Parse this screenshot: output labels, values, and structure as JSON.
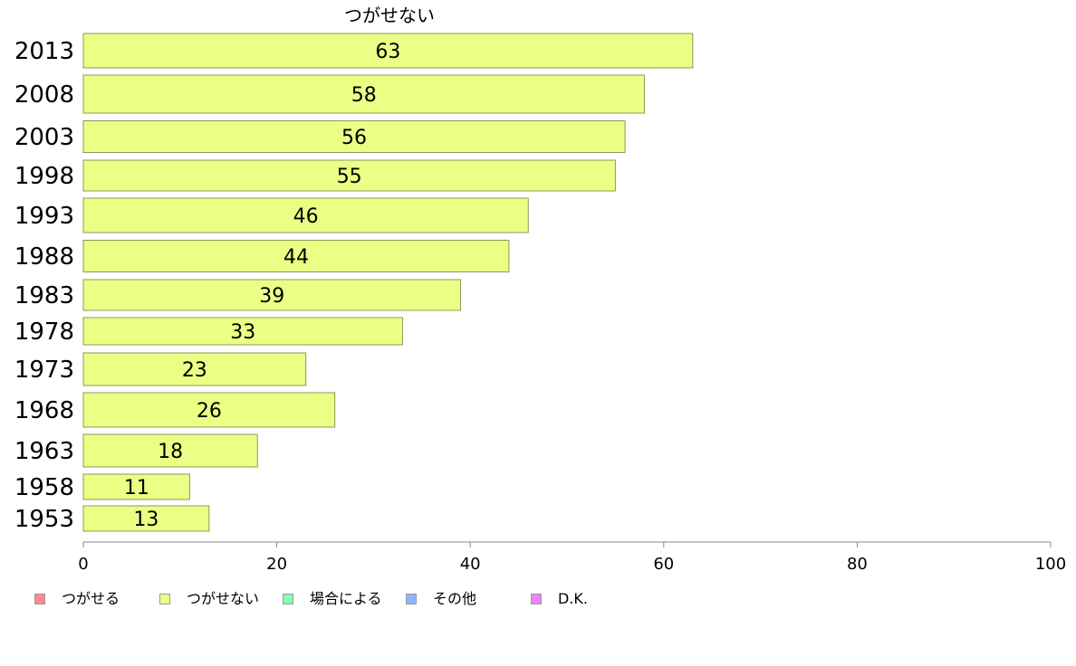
{
  "chart_data": {
    "type": "bar",
    "orientation": "horizontal",
    "title": "つがせない",
    "categories": [
      "2013",
      "2008",
      "2003",
      "1998",
      "1993",
      "1988",
      "1983",
      "1978",
      "1973",
      "1968",
      "1963",
      "1958",
      "1953"
    ],
    "series": [
      {
        "name": "つがせない",
        "values": [
          63,
          58,
          56,
          55,
          46,
          44,
          39,
          33,
          23,
          26,
          18,
          11,
          13
        ],
        "color": "#ebff85"
      }
    ],
    "data_labels": [
      "63",
      "58",
      "56",
      "55",
      "46",
      "44",
      "39",
      "33",
      "23",
      "26",
      "18",
      "11",
      "13"
    ],
    "xlim": [
      0,
      100
    ],
    "xticks": [
      "0",
      "20",
      "40",
      "60",
      "80",
      "100"
    ],
    "grid": false,
    "legend_position": "bottom-left"
  },
  "legend": {
    "items": [
      {
        "label": "つがせる",
        "color": "#ff8a8a"
      },
      {
        "label": "つがせない",
        "color": "#ebff85"
      },
      {
        "label": "場合による",
        "color": "#8affb8"
      },
      {
        "label": "その他",
        "color": "#8ab8ff"
      },
      {
        "label": "D.K.",
        "color": "#eb85ff"
      }
    ]
  }
}
